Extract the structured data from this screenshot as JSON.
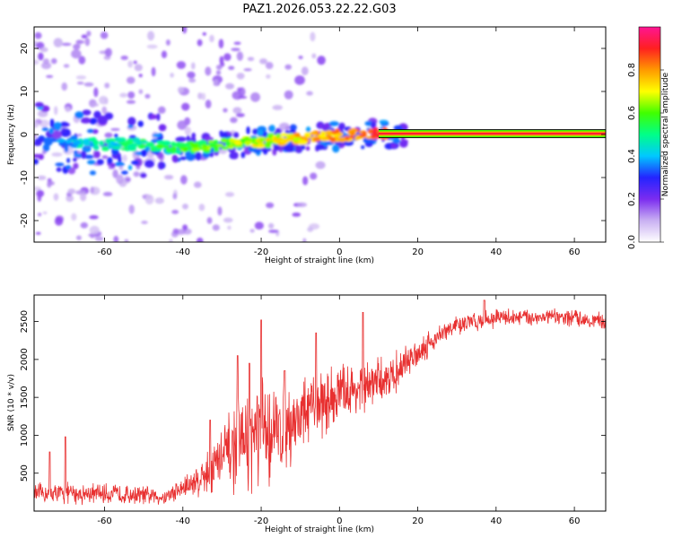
{
  "figure_title": "PAZ1.2026.053.22.22.G03",
  "chart_data": [
    {
      "type": "heatmap",
      "title": "PAZ1.2026.053.22.22.G03",
      "xlabel": "Height of straight line (km)",
      "ylabel": "Frequency (Hz)",
      "xlim": [
        -78,
        68
      ],
      "ylim": [
        -25,
        25
      ],
      "x_ticks": [
        -60,
        -40,
        -20,
        0,
        20,
        40,
        60
      ],
      "x_tick_labels": [
        "-60",
        "-40",
        "-20",
        "0",
        "20",
        "40",
        "60"
      ],
      "y_ticks": [
        -20,
        -10,
        0,
        10,
        20
      ],
      "y_tick_labels": [
        "-20",
        "-10",
        "0",
        "10",
        "20"
      ],
      "grid": false,
      "colorbar": {
        "label": "Normalized spectral amplitude",
        "range": [
          0,
          1
        ],
        "ticks": [
          0,
          0.2,
          0.4,
          0.6,
          0.8
        ],
        "tick_labels": [
          "0.0",
          "0.2",
          "0.4",
          "0.6",
          "0.8"
        ],
        "colormap": [
          "#ffffff",
          "#c9b0f2",
          "#7b2cf0",
          "#2424ff",
          "#00c8ff",
          "#00ff88",
          "#40ff00",
          "#ffff00",
          "#ff9900",
          "#ff2020",
          "#ff1493"
        ]
      },
      "ridge_center": [
        {
          "x": -75,
          "y": -1.5
        },
        {
          "x": -70,
          "y": -1.5
        },
        {
          "x": -65,
          "y": -1.8
        },
        {
          "x": -60,
          "y": -2.2
        },
        {
          "x": -55,
          "y": -2.3
        },
        {
          "x": -50,
          "y": -2.5
        },
        {
          "x": -45,
          "y": -2.8
        },
        {
          "x": -40,
          "y": -3.0
        },
        {
          "x": -35,
          "y": -2.8
        },
        {
          "x": -30,
          "y": -2.4
        },
        {
          "x": -25,
          "y": -1.8
        },
        {
          "x": -20,
          "y": -1.6
        },
        {
          "x": -15,
          "y": -1.2
        },
        {
          "x": -10,
          "y": -0.8
        },
        {
          "x": -5,
          "y": -0.5
        },
        {
          "x": 0,
          "y": -0.3
        },
        {
          "x": 5,
          "y": 0.0
        },
        {
          "x": 10,
          "y": 0.2
        },
        {
          "x": 15,
          "y": 0.2
        },
        {
          "x": 20,
          "y": 0.2
        },
        {
          "x": 30,
          "y": 0.2
        },
        {
          "x": 40,
          "y": 0.2
        },
        {
          "x": 50,
          "y": 0.2
        },
        {
          "x": 60,
          "y": 0.2
        },
        {
          "x": 68,
          "y": 0.2
        }
      ]
    },
    {
      "type": "line",
      "title": "",
      "xlabel": "Height of straight line (km)",
      "ylabel": "SNR (10 * v/v)",
      "xlim": [
        -78,
        68
      ],
      "ylim": [
        0,
        2850
      ],
      "x_ticks": [
        -60,
        -40,
        -20,
        0,
        20,
        40,
        60
      ],
      "x_tick_labels": [
        "-60",
        "-40",
        "-20",
        "0",
        "20",
        "40",
        "60"
      ],
      "y_ticks": [
        500,
        1000,
        1500,
        2000,
        2500
      ],
      "y_tick_labels": [
        "500",
        "1000",
        "1500",
        "2000",
        "2500"
      ],
      "grid": false,
      "series": [
        {
          "name": "SNR",
          "color": "#e83030",
          "envelope": [
            {
              "x": -78,
              "mean": 230,
              "spread": 130
            },
            {
              "x": -70,
              "mean": 230,
              "spread": 140
            },
            {
              "x": -60,
              "mean": 230,
              "spread": 130
            },
            {
              "x": -50,
              "mean": 210,
              "spread": 120
            },
            {
              "x": -45,
              "mean": 180,
              "spread": 100
            },
            {
              "x": -40,
              "mean": 300,
              "spread": 160
            },
            {
              "x": -35,
              "mean": 450,
              "spread": 250
            },
            {
              "x": -30,
              "mean": 700,
              "spread": 450
            },
            {
              "x": -25,
              "mean": 900,
              "spread": 600
            },
            {
              "x": -20,
              "mean": 1000,
              "spread": 750
            },
            {
              "x": -15,
              "mean": 1050,
              "spread": 550
            },
            {
              "x": -10,
              "mean": 1250,
              "spread": 500
            },
            {
              "x": -5,
              "mean": 1400,
              "spread": 450
            },
            {
              "x": 0,
              "mean": 1550,
              "spread": 400
            },
            {
              "x": 5,
              "mean": 1600,
              "spread": 350
            },
            {
              "x": 10,
              "mean": 1700,
              "spread": 300
            },
            {
              "x": 15,
              "mean": 1850,
              "spread": 250
            },
            {
              "x": 20,
              "mean": 2100,
              "spread": 200
            },
            {
              "x": 25,
              "mean": 2300,
              "spread": 150
            },
            {
              "x": 30,
              "mean": 2450,
              "spread": 130
            },
            {
              "x": 40,
              "mean": 2550,
              "spread": 120
            },
            {
              "x": 50,
              "mean": 2560,
              "spread": 110
            },
            {
              "x": 60,
              "mean": 2550,
              "spread": 110
            },
            {
              "x": 68,
              "mean": 2500,
              "spread": 110
            }
          ],
          "spikes": [
            {
              "x": -74,
              "y": 780
            },
            {
              "x": -70,
              "y": 980
            },
            {
              "x": -33,
              "y": 1200
            },
            {
              "x": -26,
              "y": 2050
            },
            {
              "x": -23,
              "y": 1950
            },
            {
              "x": -20,
              "y": 2520
            },
            {
              "x": -14,
              "y": 1850
            },
            {
              "x": -6,
              "y": 2350
            },
            {
              "x": 6,
              "y": 2620
            },
            {
              "x": 37,
              "y": 2780
            }
          ]
        }
      ]
    }
  ]
}
